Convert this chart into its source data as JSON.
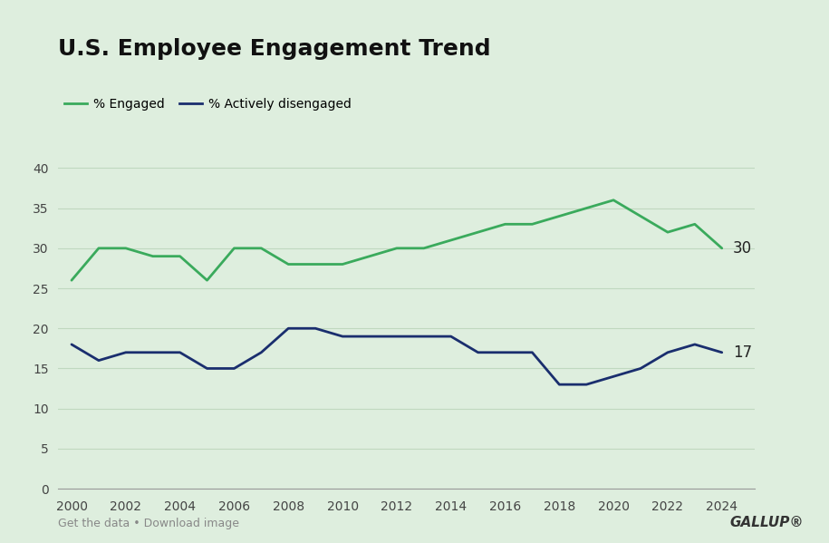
{
  "title": "U.S. Employee Engagement Trend",
  "background_color": "#deeede",
  "engaged_color": "#3aaa5c",
  "disengaged_color": "#1a2e6e",
  "grid_color": "#c0d8bf",
  "years": [
    2000,
    2001,
    2002,
    2003,
    2004,
    2005,
    2006,
    2007,
    2008,
    2009,
    2010,
    2011,
    2012,
    2013,
    2014,
    2015,
    2016,
    2017,
    2018,
    2019,
    2020,
    2021,
    2022,
    2023,
    2024
  ],
  "engaged": [
    26,
    30,
    30,
    29,
    29,
    26,
    30,
    30,
    28,
    28,
    28,
    29,
    30,
    30,
    31,
    32,
    33,
    33,
    34,
    35,
    36,
    34,
    32,
    33,
    30
  ],
  "disengaged": [
    18,
    16,
    17,
    17,
    17,
    15,
    15,
    17,
    20,
    20,
    19,
    19,
    19,
    19,
    19,
    17,
    17,
    17,
    13,
    13,
    14,
    15,
    17,
    18,
    17
  ],
  "ylim": [
    0,
    42
  ],
  "yticks": [
    0,
    5,
    10,
    15,
    20,
    25,
    30,
    35,
    40
  ],
  "xticks": [
    2000,
    2002,
    2004,
    2006,
    2008,
    2010,
    2012,
    2014,
    2016,
    2018,
    2020,
    2022,
    2024
  ],
  "xlim_left": 1999.5,
  "xlim_right": 2025.2,
  "legend_engaged": "% Engaged",
  "legend_disengaged": "% Actively disengaged",
  "label_engaged": "30",
  "label_disengaged": "17",
  "footer_left": "Get the data • Download image",
  "footer_right": "GALLUP®",
  "title_fontsize": 18,
  "legend_fontsize": 10,
  "tick_fontsize": 10,
  "footer_fontsize": 9,
  "gallup_fontsize": 11
}
